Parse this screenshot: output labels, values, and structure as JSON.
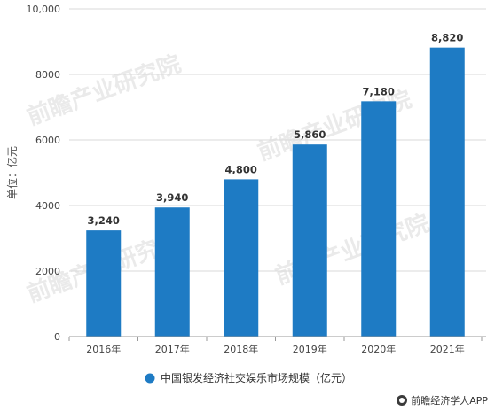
{
  "chart_data": {
    "type": "bar",
    "categories": [
      "2016年",
      "2017年",
      "2018年",
      "2019年",
      "2020年",
      "2021年"
    ],
    "series": [
      {
        "name": "中国银发经济社交娱乐市场规模（亿元）",
        "values": [
          3240,
          3940,
          4800,
          5860,
          7180,
          8820
        ]
      }
    ],
    "data_labels": [
      "3,240",
      "3,940",
      "4,800",
      "5,860",
      "7,180",
      "8,820"
    ],
    "ylabel": "单位：亿元",
    "ylim": [
      0,
      10000
    ],
    "yticks": [
      0,
      2000,
      4000,
      6000,
      8000,
      10000
    ],
    "ytick_labels": [
      "0",
      "2000",
      "4000",
      "6000",
      "8000",
      "10,000"
    ],
    "grid": true,
    "legend_position": "bottom",
    "bar_color": "#1e7bc4"
  },
  "watermark": "前瞻产业研究院",
  "credit": "前瞻经济学人APP"
}
